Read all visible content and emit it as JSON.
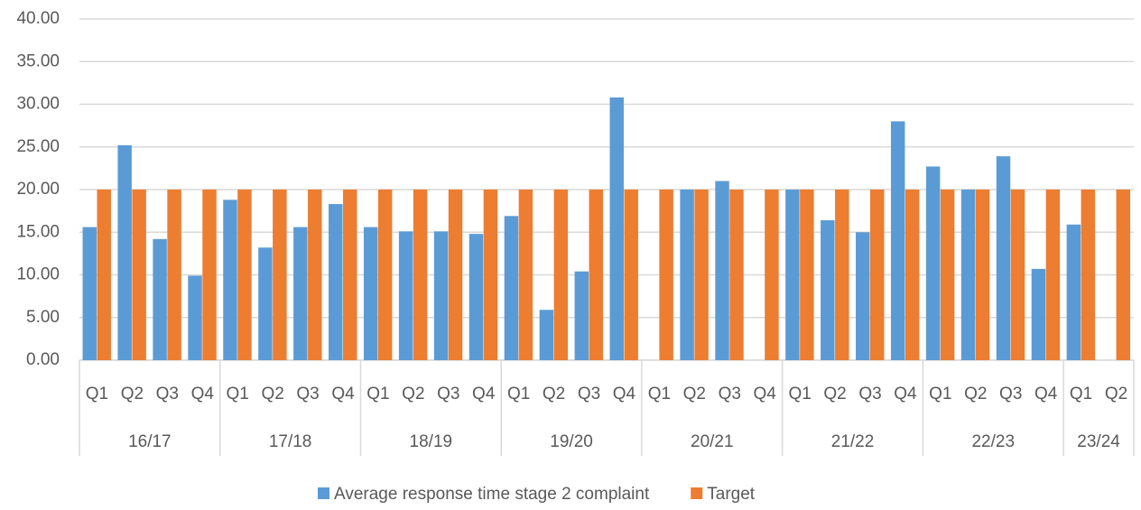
{
  "chart_data": {
    "type": "bar",
    "groups": [
      {
        "name": "16/17",
        "categories": [
          "Q1",
          "Q2",
          "Q3",
          "Q4"
        ]
      },
      {
        "name": "17/18",
        "categories": [
          "Q1",
          "Q2",
          "Q3",
          "Q4"
        ]
      },
      {
        "name": "18/19",
        "categories": [
          "Q1",
          "Q2",
          "Q3",
          "Q4"
        ]
      },
      {
        "name": "19/20",
        "categories": [
          "Q1",
          "Q2",
          "Q3",
          "Q4"
        ]
      },
      {
        "name": "20/21",
        "categories": [
          "Q1",
          "Q2",
          "Q3",
          "Q4"
        ]
      },
      {
        "name": "21/22",
        "categories": [
          "Q1",
          "Q2",
          "Q3",
          "Q4"
        ]
      },
      {
        "name": "22/23",
        "categories": [
          "Q1",
          "Q2",
          "Q3",
          "Q4"
        ]
      },
      {
        "name": "23/24",
        "categories": [
          "Q1",
          "Q2"
        ]
      }
    ],
    "series": [
      {
        "name": "Average response time stage 2 complaint",
        "color": "#5b9bd5",
        "values": [
          15.6,
          25.2,
          14.2,
          9.9,
          18.8,
          13.2,
          15.6,
          18.3,
          15.6,
          15.1,
          15.1,
          14.8,
          16.9,
          5.9,
          10.4,
          30.8,
          null,
          20.0,
          21.0,
          null,
          20.0,
          16.4,
          15.0,
          28.0,
          22.7,
          20.0,
          23.9,
          10.7,
          15.9,
          null
        ]
      },
      {
        "name": "Target",
        "color": "#ed7d31",
        "values": [
          20,
          20,
          20,
          20,
          20,
          20,
          20,
          20,
          20,
          20,
          20,
          20,
          20,
          20,
          20,
          20,
          20,
          20,
          20,
          20,
          20,
          20,
          20,
          20,
          20,
          20,
          20,
          20,
          20,
          20
        ]
      }
    ],
    "ylim": [
      0,
      40
    ],
    "yticks": [
      {
        "value": 0,
        "label": "0.00"
      },
      {
        "value": 5,
        "label": "5.00"
      },
      {
        "value": 10,
        "label": "10.00"
      },
      {
        "value": 15,
        "label": "15.00"
      },
      {
        "value": 20,
        "label": "20.00"
      },
      {
        "value": 25,
        "label": "25.00"
      },
      {
        "value": 30,
        "label": "30.00"
      },
      {
        "value": 35,
        "label": "35.00"
      },
      {
        "value": 40,
        "label": "40.00"
      }
    ],
    "grid": true,
    "legend": "bottom"
  }
}
